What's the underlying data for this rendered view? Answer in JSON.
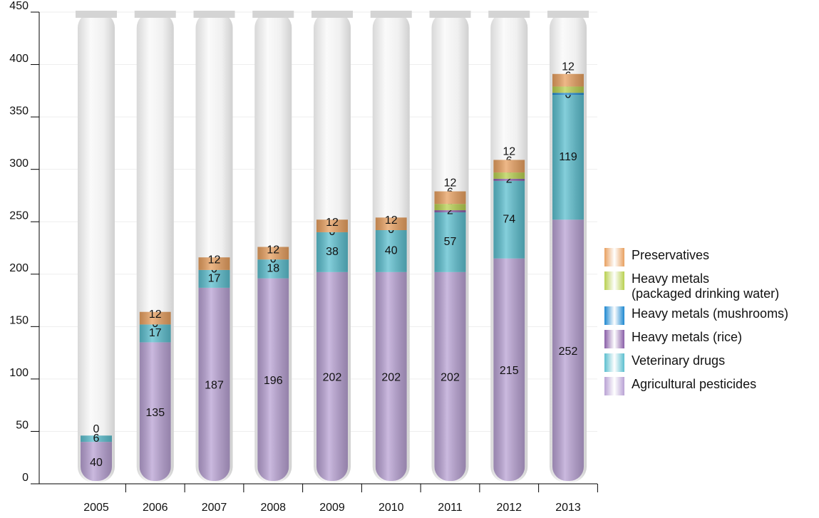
{
  "chart_data": {
    "type": "bar",
    "stacked": true,
    "categories": [
      "2005",
      "2006",
      "2007",
      "2008",
      "2009",
      "2010",
      "2011",
      "2012",
      "2013"
    ],
    "ylim": [
      0,
      450
    ],
    "yticks": [
      0,
      50,
      100,
      150,
      200,
      250,
      300,
      350,
      400,
      450
    ],
    "series": [
      {
        "name": "Agricultural pesticides",
        "color": "#b9a2d4",
        "values": [
          40,
          135,
          187,
          196,
          202,
          202,
          202,
          215,
          252
        ]
      },
      {
        "name": "Veterinary drugs",
        "color": "#5cbfcf",
        "values": [
          6,
          17,
          17,
          18,
          38,
          40,
          57,
          74,
          119
        ]
      },
      {
        "name": "Heavy metals (rice)",
        "color": "#8a5fa8",
        "values": [
          null,
          0,
          0,
          0,
          0,
          0,
          2,
          2,
          0
        ]
      },
      {
        "name": "Heavy metals (mushrooms)",
        "color": "#1e88d0",
        "values": [
          null,
          null,
          null,
          null,
          null,
          null,
          0,
          0,
          2
        ]
      },
      {
        "name": "Heavy metals\n(packaged drinking water)",
        "color": "#b8d050",
        "values": [
          null,
          null,
          null,
          null,
          null,
          null,
          6,
          6,
          6
        ]
      },
      {
        "name": "Preservatives",
        "color": "#e8a060",
        "values": [
          0,
          12,
          12,
          12,
          12,
          12,
          12,
          12,
          12
        ]
      }
    ]
  }
}
